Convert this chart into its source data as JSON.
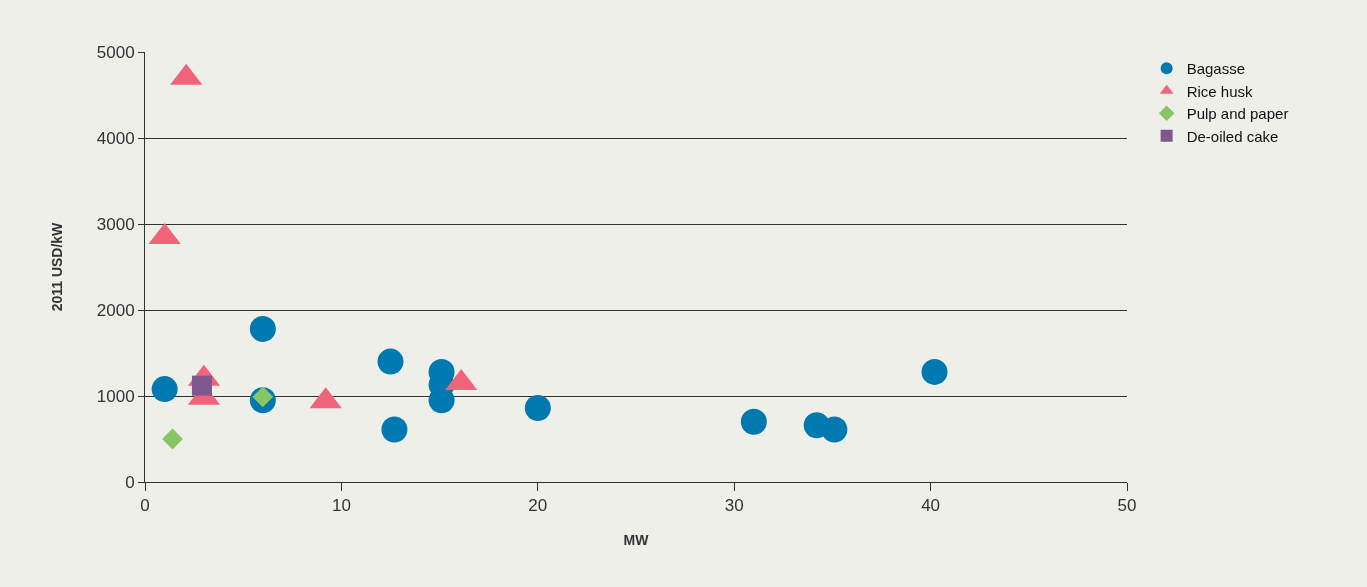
{
  "chart_data": {
    "type": "scatter",
    "xlabel": "MW",
    "ylabel": "2011 USD/kW",
    "xlim": [
      0,
      50
    ],
    "xticks": [
      0,
      10,
      20,
      30,
      40,
      50
    ],
    "ylim": [
      0,
      5000
    ],
    "yticks": [
      0,
      1000,
      2000,
      3000,
      4000,
      5000
    ],
    "grid": "y",
    "legend": "top right",
    "series": [
      {
        "name": "Bagasse",
        "color": "#0079b1",
        "marker": "circle",
        "x": [
          1.0,
          6.0,
          6.0,
          12.5,
          12.7,
          15.1,
          15.1,
          15.1,
          20.0,
          31.0,
          34.2,
          35.1,
          40.2
        ],
        "values": [
          1080,
          1780,
          950,
          1400,
          610,
          1280,
          1130,
          950,
          860,
          700,
          660,
          610,
          1280
        ]
      },
      {
        "name": "Rice husk",
        "color": "#f0647a",
        "marker": "triangle",
        "x": [
          2.1,
          1.0,
          3.0,
          3.0,
          9.2,
          16.1
        ],
        "values": [
          4700,
          2850,
          1200,
          980,
          940,
          1150
        ]
      },
      {
        "name": "Pulp and paper",
        "color": "#88c665",
        "marker": "diamond",
        "x": [
          1.4,
          6.0
        ],
        "values": [
          500,
          990
        ]
      },
      {
        "name": "De-oiled cake",
        "color": "#7e578c",
        "marker": "square",
        "x": [
          2.9
        ],
        "values": [
          1120
        ]
      }
    ]
  }
}
